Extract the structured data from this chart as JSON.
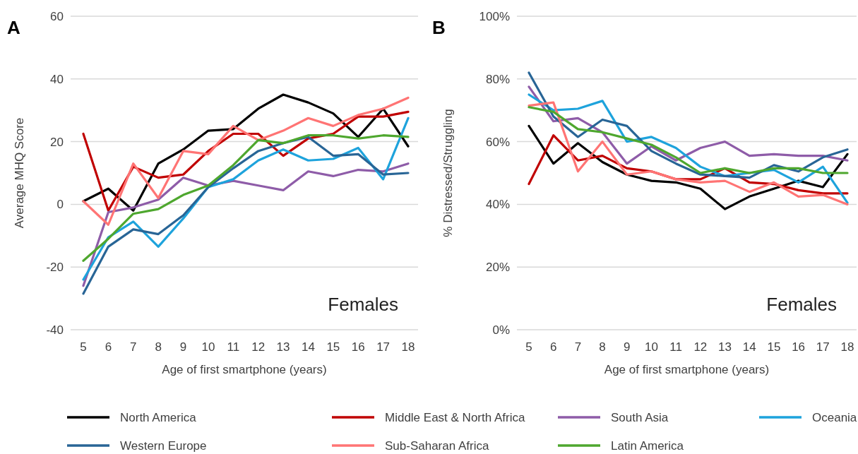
{
  "chart_data": [
    {
      "type": "line",
      "title": "A",
      "xlabel": "Age of first smartphone (years)",
      "ylabel": "Average MHQ Score",
      "categories": [
        "5",
        "6",
        "7",
        "8",
        "9",
        "10",
        "11",
        "12",
        "13",
        "14",
        "15",
        "16",
        "17",
        "18"
      ],
      "ylim": [
        -40,
        60
      ],
      "yticks": [
        -40,
        -20,
        0,
        20,
        40,
        60
      ],
      "grid": "y",
      "legend": "bottom",
      "marker": "none",
      "line_style": "solid",
      "annotations": [
        "Females"
      ],
      "series": [
        {
          "name": "North America",
          "color": "#000000",
          "values": [
            1,
            5,
            -2,
            13,
            17.5,
            23.5,
            24,
            30.5,
            35,
            32.5,
            29,
            21.5,
            30.5,
            18.5
          ]
        },
        {
          "name": "Middle East & North Africa",
          "color": "#c00000",
          "values": [
            22.5,
            -2,
            12,
            8.5,
            9.5,
            17,
            22.5,
            22.5,
            15.5,
            21,
            22.5,
            28,
            28,
            29.5
          ]
        },
        {
          "name": "South Asia",
          "color": "#8e5ca8",
          "values": [
            -26,
            -2.5,
            -1,
            1.5,
            8.5,
            6,
            7.5,
            6,
            4.5,
            10.5,
            9,
            11,
            10.5,
            13
          ]
        },
        {
          "name": "Oceania",
          "color": "#1ea3dc",
          "values": [
            -24,
            -10.5,
            -5.5,
            -13.5,
            -4.5,
            5.5,
            8,
            14,
            17.5,
            14,
            14.5,
            18,
            8,
            27.5
          ]
        },
        {
          "name": "Western Europe",
          "color": "#286596",
          "values": [
            -28.5,
            -13.5,
            -8,
            -9.5,
            -3.5,
            5.5,
            11.5,
            17,
            19.5,
            21.5,
            15.5,
            16,
            9.5,
            10
          ]
        },
        {
          "name": "Sub-Saharan Africa",
          "color": "#ff7474",
          "values": [
            1,
            -6.5,
            13,
            2,
            17,
            16,
            25,
            20.5,
            23.5,
            27.5,
            25,
            28.5,
            30.5,
            34
          ]
        },
        {
          "name": "Latin America",
          "color": "#4ea72e",
          "values": [
            -18,
            -11,
            -3,
            -1.5,
            3,
            6,
            12.5,
            20.5,
            19.5,
            22,
            22,
            21,
            22,
            21.5
          ]
        }
      ]
    },
    {
      "type": "line",
      "title": "B",
      "xlabel": "Age of first smartphone (years)",
      "ylabel": "% Distressed/Struggling",
      "categories": [
        "5",
        "6",
        "7",
        "8",
        "9",
        "10",
        "11",
        "12",
        "13",
        "14",
        "15",
        "16",
        "17",
        "18"
      ],
      "ylim": [
        0,
        100
      ],
      "yticks": [
        {
          "value": 0,
          "label": "0%"
        },
        {
          "value": 20,
          "label": "20%"
        },
        {
          "value": 40,
          "label": "40%"
        },
        {
          "value": 60,
          "label": "60%"
        },
        {
          "value": 80,
          "label": "80%"
        },
        {
          "value": 100,
          "label": "100%"
        }
      ],
      "grid": "y",
      "legend": "bottom",
      "marker": "none",
      "line_style": "solid",
      "annotations": [
        "Females"
      ],
      "series": [
        {
          "name": "North America",
          "color": "#000000",
          "values": [
            65,
            53,
            59.5,
            53.5,
            49.5,
            47.5,
            47,
            45,
            38.5,
            42.5,
            45,
            47.5,
            45.5,
            56
          ]
        },
        {
          "name": "Middle East & North Africa",
          "color": "#c00000",
          "values": [
            46.5,
            62,
            54,
            55.5,
            51.5,
            50.5,
            48,
            48,
            51.5,
            47,
            46.5,
            44.5,
            43.5,
            43.5
          ]
        },
        {
          "name": "South Asia",
          "color": "#8e5ca8",
          "values": [
            77.5,
            66.5,
            67.5,
            63,
            53,
            58.5,
            54,
            58,
            60,
            55.5,
            56,
            55.5,
            55.5,
            54
          ]
        },
        {
          "name": "Oceania",
          "color": "#1ea3dc",
          "values": [
            75,
            70,
            70.5,
            73,
            60,
            61.5,
            58,
            52,
            49,
            50,
            51,
            47,
            52,
            40.5
          ]
        },
        {
          "name": "Western Europe",
          "color": "#286596",
          "values": [
            82,
            68,
            61.5,
            67,
            65,
            57,
            53,
            49.5,
            49,
            48.5,
            52.5,
            50.5,
            55,
            57.5
          ]
        },
        {
          "name": "Sub-Saharan Africa",
          "color": "#ff7474",
          "values": [
            71.5,
            72.5,
            50.5,
            60,
            49.5,
            50.5,
            48,
            47,
            47.5,
            44,
            47,
            42.5,
            43,
            40
          ]
        },
        {
          "name": "Latin America",
          "color": "#4ea72e",
          "values": [
            71,
            69.5,
            64,
            63,
            61,
            59,
            55,
            50,
            51.5,
            50,
            51.5,
            51.5,
            50,
            50
          ]
        }
      ]
    }
  ]
}
